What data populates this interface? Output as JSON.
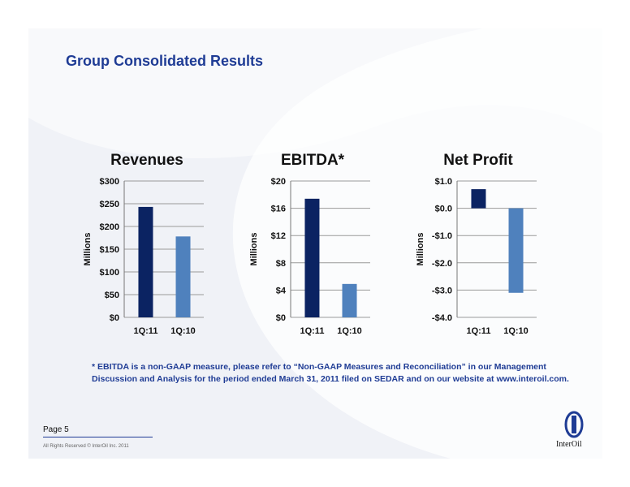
{
  "slide": {
    "title": "Group Consolidated Results",
    "footnote": "* EBITDA is a non-GAAP measure, please refer to “Non-GAAP Measures and Reconciliation” in our Management Discussion and Analysis for the period ended March 31, 2011 filed on SEDAR and on our website at www.interoil.com.",
    "page": "Page 5",
    "rights": "All Rights Reserved © InterOil Inc. 2011",
    "logo_text": "InterOil"
  },
  "colors": {
    "title": "#1f3c95",
    "bar_current": "#0b2362",
    "bar_prior": "#4f81bd",
    "background": "#f0f2f7"
  },
  "chart_data": [
    {
      "type": "bar",
      "title": "Revenues",
      "ylabel": "Millions",
      "categories": [
        "1Q:11",
        "1Q:10"
      ],
      "values": [
        243,
        178
      ],
      "ylim": [
        0,
        300
      ],
      "yticks": [
        0,
        50,
        100,
        150,
        200,
        250,
        300
      ],
      "yticklabels": [
        "$0",
        "$50",
        "$100",
        "$150",
        "$200",
        "$250",
        "$300"
      ],
      "grid": true
    },
    {
      "type": "bar",
      "title": "EBITDA*",
      "ylabel": "Millions",
      "categories": [
        "1Q:11",
        "1Q:10"
      ],
      "values": [
        17.4,
        4.9
      ],
      "ylim": [
        0,
        20
      ],
      "yticks": [
        0,
        4,
        8,
        12,
        16,
        20
      ],
      "yticklabels": [
        "$0",
        "$4",
        "$8",
        "$12",
        "$16",
        "$20"
      ],
      "grid": true
    },
    {
      "type": "bar",
      "title": "Net Profit",
      "ylabel": "Millions",
      "categories": [
        "1Q:11",
        "1Q:10"
      ],
      "values": [
        0.7,
        -3.1
      ],
      "ylim": [
        -4,
        1
      ],
      "yticks": [
        -4,
        -3,
        -2,
        -1,
        0,
        1
      ],
      "yticklabels": [
        "-$4.0",
        "-$3.0",
        "-$2.0",
        "-$1.0",
        "$0.0",
        "$1.0"
      ],
      "grid": true
    }
  ]
}
